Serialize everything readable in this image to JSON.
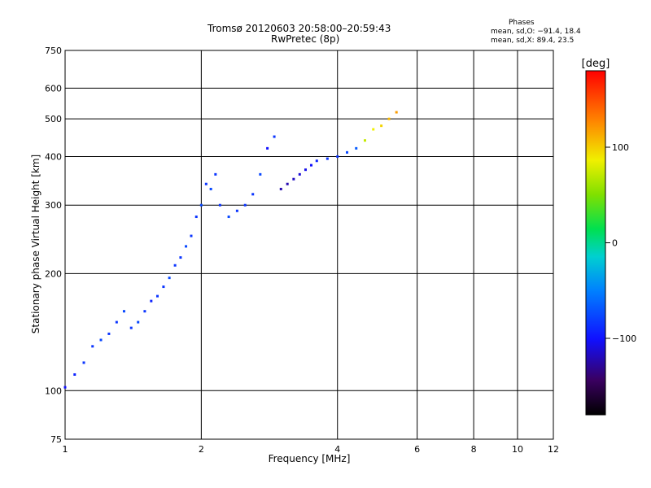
{
  "chart_data": {
    "type": "scatter",
    "title": "Tromsø 20120603 20:58:00–20:59:43",
    "subtitle": "RwPretec (8p)",
    "stats_title": "Phases",
    "stats": [
      "mean, sd,O: −91.4, 18.4",
      "mean, sd,X: 89.4, 23.5"
    ],
    "xlabel": "Frequency [MHz]",
    "ylabel": "Stationary phase Virtual Height [km]",
    "x_scale": "log",
    "y_scale": "log",
    "xlim": [
      1,
      12
    ],
    "ylim": [
      75,
      750
    ],
    "x_ticks": [
      1,
      2,
      4,
      6,
      8,
      10,
      12
    ],
    "x_tick_labels": [
      "1",
      "2",
      "4",
      "6",
      "8",
      "10",
      "12"
    ],
    "x_grid": [
      2,
      4,
      6,
      8,
      10
    ],
    "y_ticks": [
      75,
      100,
      200,
      300,
      400,
      500,
      600,
      750
    ],
    "y_tick_labels": [
      "75",
      "100",
      "200",
      "300",
      "400",
      "500",
      "600",
      "750"
    ],
    "y_grid": [
      100,
      200,
      300,
      400,
      500,
      600
    ],
    "grid": true,
    "colorbar": {
      "label": "[deg]",
      "range": [
        -180,
        180
      ],
      "ticks": [
        100,
        0,
        -100
      ],
      "tick_labels": [
        "100",
        "0",
        "−100"
      ]
    },
    "series": [
      {
        "x": [
          1.0,
          1.05,
          1.1,
          1.15,
          1.2,
          1.25,
          1.3,
          1.35,
          1.4,
          1.45,
          1.5,
          1.55,
          1.6,
          1.65,
          1.7,
          1.75,
          1.8,
          1.85,
          1.9,
          1.95,
          2.0,
          2.05,
          2.1,
          2.15,
          2.2,
          2.3,
          2.4,
          2.5,
          2.6,
          2.7,
          2.8,
          2.9,
          3.0,
          3.1,
          3.2,
          3.3,
          3.4,
          3.5,
          3.6,
          3.8,
          4.0,
          4.2,
          4.4,
          4.6,
          4.8,
          5.0,
          5.2,
          5.4
        ],
        "y": [
          102,
          110,
          118,
          130,
          135,
          140,
          150,
          160,
          145,
          150,
          160,
          170,
          175,
          185,
          195,
          210,
          220,
          235,
          250,
          280,
          300,
          340,
          330,
          360,
          300,
          280,
          290,
          300,
          320,
          360,
          420,
          450,
          330,
          340,
          350,
          360,
          370,
          380,
          390,
          395,
          400,
          410,
          420,
          440,
          470,
          480,
          500,
          520
        ],
        "phase": [
          -110,
          -105,
          -100,
          -100,
          -95,
          -100,
          -100,
          -95,
          -100,
          -95,
          -100,
          -105,
          -100,
          -100,
          -95,
          -100,
          -100,
          -95,
          -100,
          -100,
          -95,
          -100,
          -95,
          -100,
          -100,
          -95,
          -100,
          -100,
          -100,
          -95,
          -110,
          -100,
          -130,
          -130,
          -125,
          -120,
          -115,
          -110,
          -105,
          -100,
          -100,
          -95,
          -90,
          80,
          100,
          110,
          120,
          130
        ]
      }
    ]
  }
}
